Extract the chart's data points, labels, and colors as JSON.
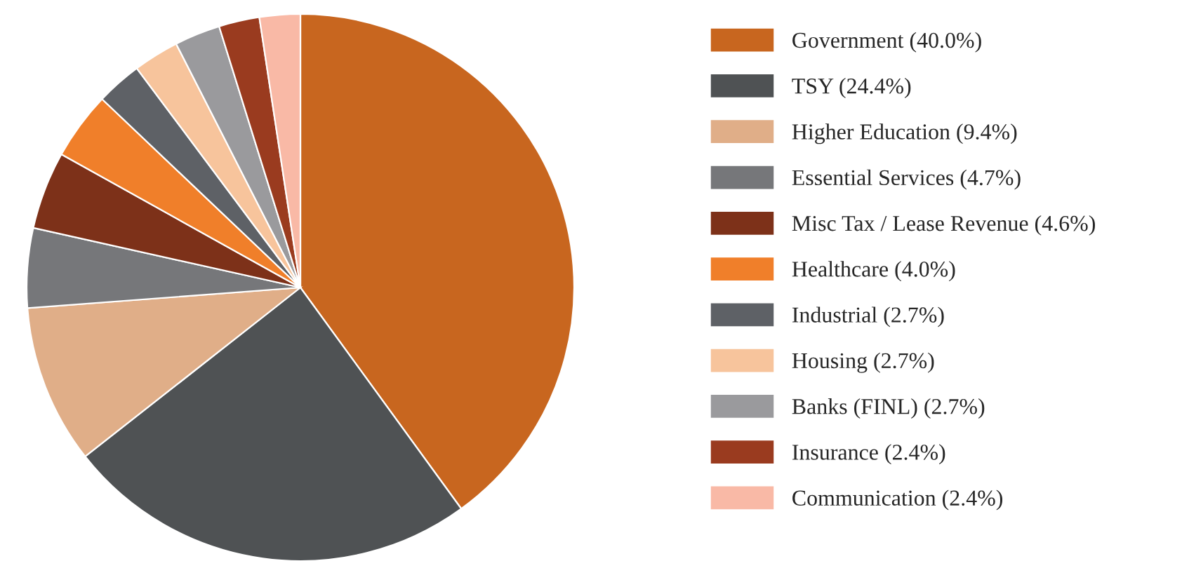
{
  "chart_data": {
    "type": "pie",
    "categories": [
      "Government (40.0%)",
      "TSY (24.4%)",
      "Higher Education (9.4%)",
      "Essential Services (4.7%)",
      "Misc Tax / Lease Revenue (4.6%)",
      "Healthcare (4.0%)",
      "Industrial (2.7%)",
      "Housing (2.7%)",
      "Banks (FINL) (2.7%)",
      "Insurance (2.4%)",
      "Communication (2.4%)"
    ],
    "values": [
      40.0,
      24.4,
      9.4,
      4.7,
      4.6,
      4.0,
      2.7,
      2.7,
      2.7,
      2.4,
      2.4
    ],
    "colors": [
      "#c8661f",
      "#4f5254",
      "#e0ae88",
      "#76777a",
      "#7d3119",
      "#f07f2a",
      "#5e6166",
      "#f7c49c",
      "#9a9a9d",
      "#9a3b1f",
      "#f9b9a6"
    ],
    "legend": "right"
  }
}
